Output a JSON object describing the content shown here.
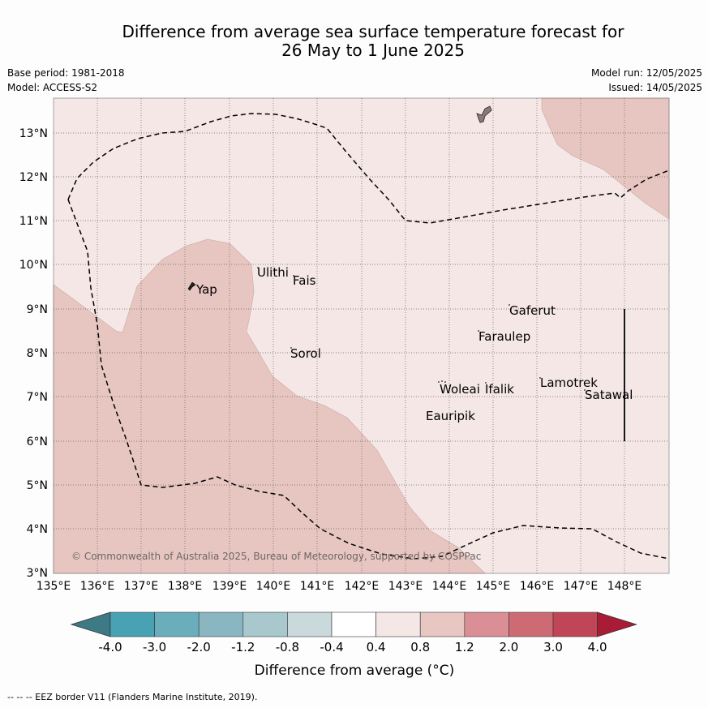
{
  "title_line1": "Difference from average sea surface temperature forecast for",
  "title_line2": "26 May to 1 June 2025",
  "meta": {
    "base_period": "Base period: 1981-2018",
    "model": "Model: ACCESS-S2",
    "model_run": "Model run: 12/05/2025",
    "issued": "Issued: 14/05/2025"
  },
  "map": {
    "lon_ticks": [
      "135°E",
      "136°E",
      "137°E",
      "138°E",
      "139°E",
      "140°E",
      "141°E",
      "142°E",
      "143°E",
      "144°E",
      "145°E",
      "146°E",
      "147°E",
      "148°E"
    ],
    "lat_ticks": [
      "13°N",
      "12°N",
      "11°N",
      "10°N",
      "9°N",
      "8°N",
      "7°N",
      "6°N",
      "5°N",
      "4°N",
      "3°N"
    ],
    "islands": [
      "Ulithi",
      "Fais",
      "Yap",
      "Gaferut",
      "Faraulep",
      "Sorol",
      "Lamotrek",
      "Woleai",
      "Ifalik",
      "Satawal",
      "Eauripik"
    ],
    "copyright": "© Commonwealth of Australia 2025, Bureau of Meteorology, supported by COSPPac",
    "colors": {
      "background_class": "#f4e7e6",
      "warm_class": "#e7c6c1",
      "land": "#8a7a7a",
      "eez": "#000000"
    }
  },
  "colorbar": {
    "ticks": [
      "-4.0",
      "-3.0",
      "-2.0",
      "-1.2",
      "-0.8",
      "-0.4",
      "0.4",
      "0.8",
      "1.2",
      "2.0",
      "3.0",
      "4.0"
    ],
    "colors": [
      "#3d7a86",
      "#48a2b3",
      "#6aaebb",
      "#89b6c1",
      "#a8c8ce",
      "#c9d9dc",
      "#ffffff",
      "#f4e7e6",
      "#e8c6c1",
      "#d98f95",
      "#cd6b75",
      "#c04556",
      "#a81c36"
    ],
    "label": "Difference from average (°C)"
  },
  "footer": "--  --  -- EEZ border V11 (Flanders Marine Institute, 2019)."
}
